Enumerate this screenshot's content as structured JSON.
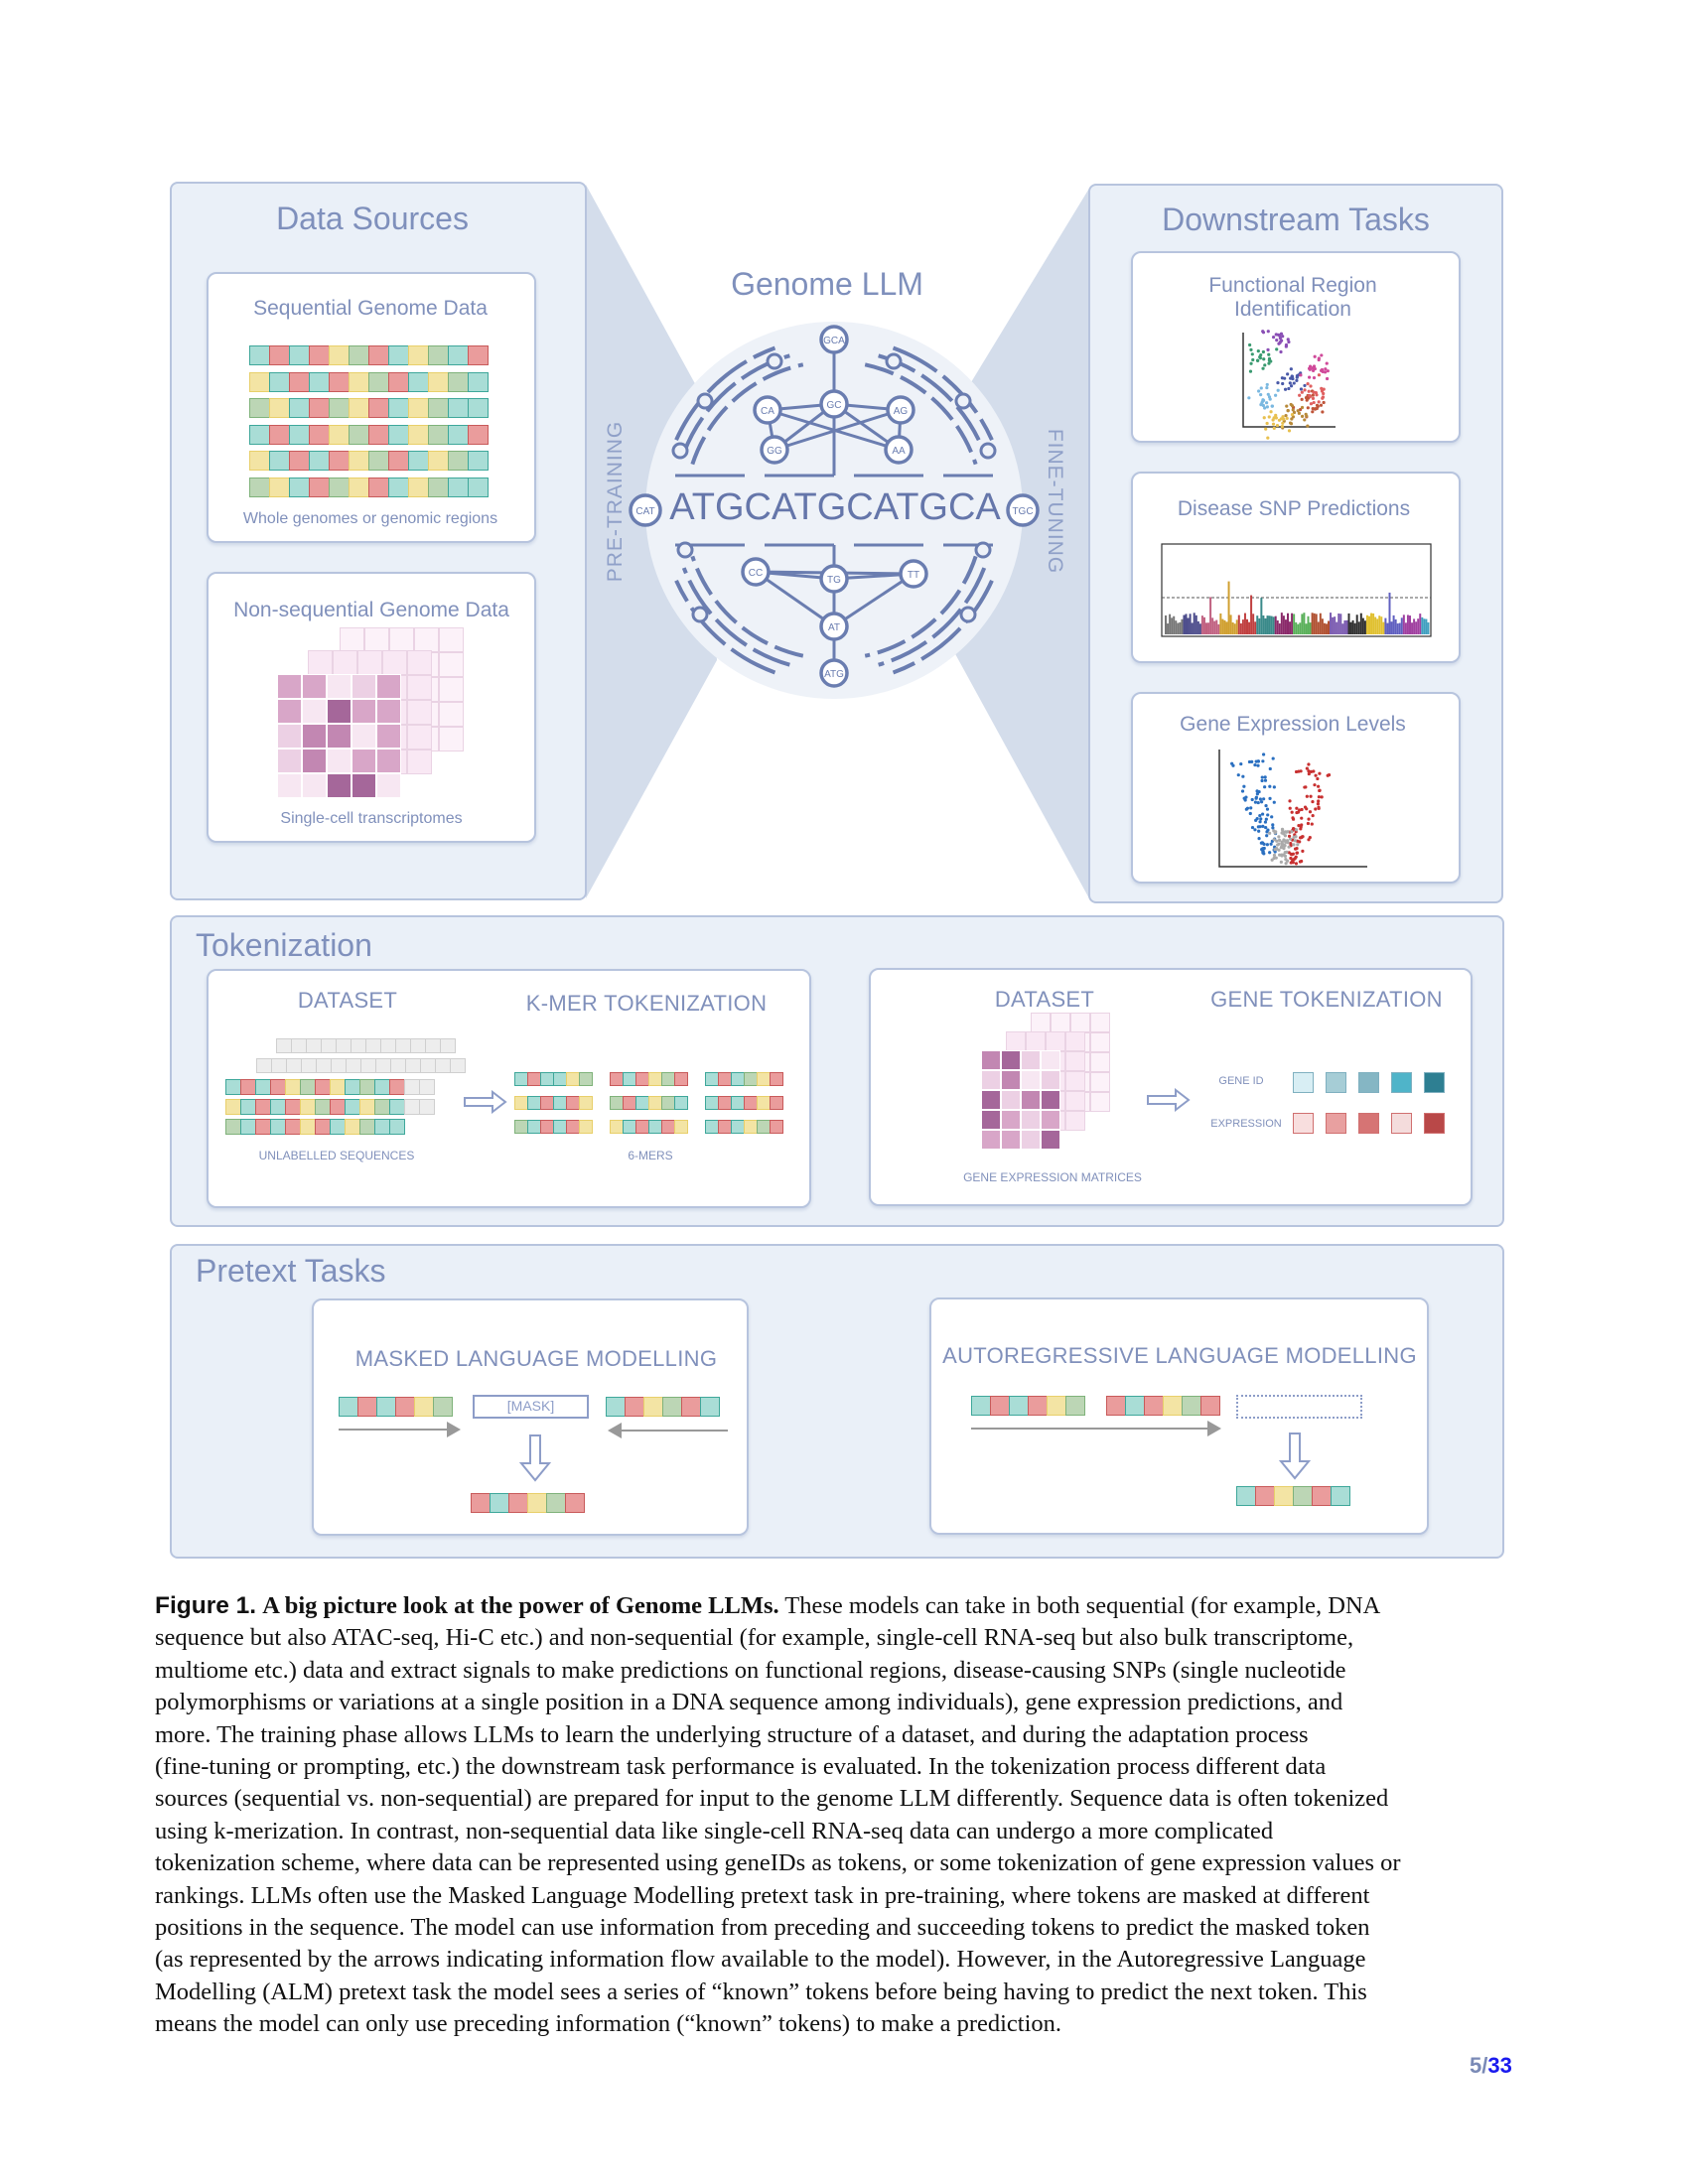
{
  "colors": {
    "teal": "#a9ddd6",
    "teal_b": "#3ea79a",
    "red": "#ea9c9c",
    "red_b": "#c85a5a",
    "yellow": "#f3e4a4",
    "yellow_b": "#e8cf6a",
    "green": "#bcd6b5",
    "green_b": "#7fb27a",
    "grey": "#ededed",
    "grey_b": "#cfcfcf",
    "text": "#7a8ab6",
    "panel": "#eaf0f8"
  },
  "data_sources": {
    "title": "Data Sources",
    "sequential": {
      "title": "Sequential Genome Data",
      "caption": "Whole genomes or genomic regions",
      "rows": [
        "TRTRYGRTYGTR",
        "YTRTRYGRTYGT",
        "GYTRGYRTYGTT",
        "TRTRYGRTYGTR",
        "YTRTRYGRTYGT",
        "GYTRGYRTYGTT"
      ]
    },
    "nonsequential": {
      "title": "Non-sequential Genome Data",
      "caption": "Single-cell transcriptomes"
    }
  },
  "center": {
    "title": "Genome LLM",
    "sequence": "ATGCATGCATGCA",
    "pretraining": "PRE-TRAINING",
    "finetuning": "FINE-TUNING",
    "nodes": [
      "GCA",
      "CA",
      "GC",
      "AG",
      "GG",
      "AA",
      "CAT",
      "TGC",
      "CC",
      "TG",
      "TT",
      "AT",
      "ATG"
    ]
  },
  "downstream": {
    "title": "Downstream Tasks",
    "tasks": [
      {
        "title": "Functional Region\nIdentification"
      },
      {
        "title": "Disease SNP Predictions"
      },
      {
        "title": "Gene Expression Levels"
      }
    ]
  },
  "tokenization": {
    "title": "Tokenization",
    "kmer": {
      "dataset": "DATASET",
      "title": "K-MER TOKENIZATION",
      "left_label": "UNLABELLED SEQUENCES",
      "right_label": "6-MERS",
      "seq_rows": [
        "TRTRYGRYTGTR",
        "YTRTRYGRTYGT",
        "GTRTRYRTYGTT"
      ],
      "kmers": [
        [
          "TRTTYG",
          "RTRYGR",
          "TRTGYR"
        ],
        [
          "YTRTRY",
          "GRTYGT",
          "TRTRYR"
        ],
        [
          "GTRTRY",
          "YTRTRY",
          "TRTYGR"
        ]
      ]
    },
    "gene": {
      "dataset": "DATASET",
      "title": "GENE TOKENIZATION",
      "matrix_label": "GENE EXPRESSION MATRICES",
      "gene_id_label": "GENE ID",
      "expression_label": "EXPRESSION",
      "gene_id_colors": [
        "#d8eef4",
        "#a6cdd6",
        "#85b6c4",
        "#4fb4c9",
        "#2e7f92"
      ],
      "expression_colors": [
        "#f8dede",
        "#e8a0a0",
        "#d67474",
        "#f4dcdc",
        "#b94848"
      ]
    }
  },
  "pretext": {
    "title": "Pretext Tasks",
    "mlm": {
      "title": "MASKED LANGUAGE MODELLING",
      "mask": "[MASK]",
      "left": "TRTRYG",
      "right": "TRYGRT",
      "output": "RTRYGR"
    },
    "alm": {
      "title": "AUTOREGRESSIVE LANGUAGE MODELLING",
      "first": "TRTRYG",
      "second": "RTRYGR",
      "output": "TRYGRT"
    }
  },
  "caption": {
    "label": "Figure 1.",
    "heading": "A big picture look at the power of Genome LLMs.",
    "lines": [
      " These models can take in both sequential (for example, DNA",
      "sequence but also ATAC-seq, Hi-C etc.) and non-sequential (for example, single-cell RNA-seq but also bulk transcriptome,",
      "multiome etc.) data and extract signals to make predictions on functional regions, disease-causing SNPs (single nucleotide",
      "polymorphisms or variations at a single position in a DNA sequence among individuals), gene expression predictions, and",
      "more. The training phase allows LLMs to learn the underlying structure of a dataset, and during the adaptation process",
      "(fine-tuning or prompting, etc.) the downstream task performance is evaluated. In the tokenization process different data",
      "sources (sequential vs. non-sequential) are prepared for input to the genome LLM differently. Sequence data is often tokenized",
      "using k-merization. In contrast, non-sequential data like single-cell RNA-seq data can undergo a more complicated",
      "tokenization scheme, where data can be represented using geneIDs as tokens, or some tokenization of gene expression values or",
      "rankings. LLMs often use the Masked Language Modelling pretext task in pre-training, where tokens are masked at different",
      "positions in the sequence. The model can use information from preceding and succeeding tokens to predict the masked token",
      "(as represented by the arrows indicating information flow available to the model). However, in the Autoregressive Language",
      "Modelling (ALM) pretext task the model sees a series of “known” tokens before being having to predict the next token. This",
      "means the model can only use preceding information (“known” tokens) to make a prediction."
    ]
  },
  "page": {
    "current": "5",
    "total": "33"
  }
}
